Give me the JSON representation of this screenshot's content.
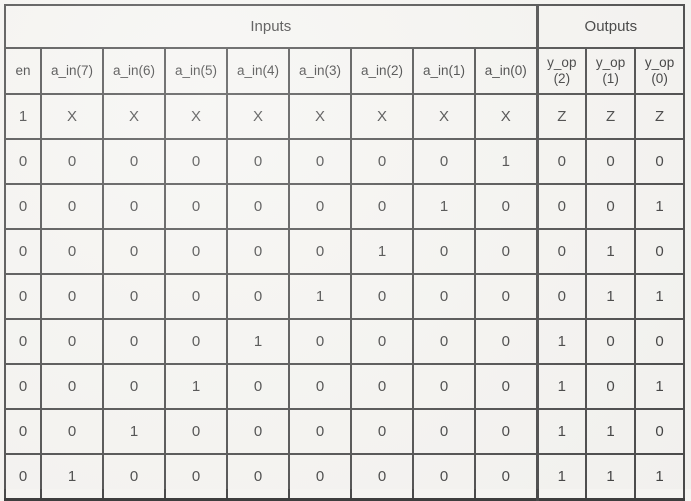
{
  "table": {
    "group_headers": [
      {
        "label": "Inputs",
        "colspan": 9
      },
      {
        "label": "Outputs",
        "colspan": 3
      }
    ],
    "columns": [
      "en",
      "a_in(7)",
      "a_in(6)",
      "a_in(5)",
      "a_in(4)",
      "a_in(3)",
      "a_in(2)",
      "a_in(1)",
      "a_in(0)",
      "y_op\n(2)",
      "y_op\n(1)",
      "y_op\n(0)"
    ],
    "rows": [
      [
        "1",
        "X",
        "X",
        "X",
        "X",
        "X",
        "X",
        "X",
        "X",
        "Z",
        "Z",
        "Z"
      ],
      [
        "0",
        "0",
        "0",
        "0",
        "0",
        "0",
        "0",
        "0",
        "1",
        "0",
        "0",
        "0"
      ],
      [
        "0",
        "0",
        "0",
        "0",
        "0",
        "0",
        "0",
        "1",
        "0",
        "0",
        "0",
        "1"
      ],
      [
        "0",
        "0",
        "0",
        "0",
        "0",
        "0",
        "1",
        "0",
        "0",
        "0",
        "1",
        "0"
      ],
      [
        "0",
        "0",
        "0",
        "0",
        "0",
        "1",
        "0",
        "0",
        "0",
        "0",
        "1",
        "1"
      ],
      [
        "0",
        "0",
        "0",
        "0",
        "1",
        "0",
        "0",
        "0",
        "0",
        "1",
        "0",
        "0"
      ],
      [
        "0",
        "0",
        "0",
        "1",
        "0",
        "0",
        "0",
        "0",
        "0",
        "1",
        "0",
        "1"
      ],
      [
        "0",
        "0",
        "1",
        "0",
        "0",
        "0",
        "0",
        "0",
        "0",
        "1",
        "1",
        "0"
      ],
      [
        "0",
        "1",
        "0",
        "0",
        "0",
        "0",
        "0",
        "0",
        "0",
        "1",
        "1",
        "1"
      ]
    ]
  }
}
